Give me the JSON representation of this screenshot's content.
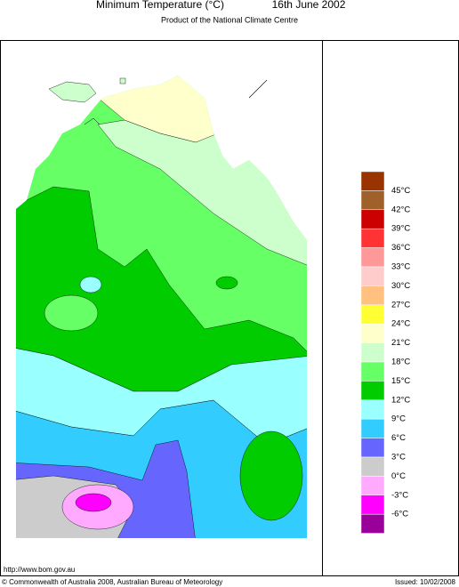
{
  "header": {
    "title": "Minimum Temperature (°C)",
    "date": "16th June 2002",
    "subtitle": "Product of the National Climate Centre"
  },
  "legend": {
    "colors": [
      "#993300",
      "#a0602a",
      "#cc0000",
      "#ff3333",
      "#ff9999",
      "#ffcccc",
      "#ffc080",
      "#ffff33",
      "#ffffcc",
      "#ccffcc",
      "#66ff66",
      "#00cc00",
      "#99ffff",
      "#33ccff",
      "#6666ff",
      "#cccccc",
      "#ffaaff",
      "#ff00ff",
      "#990099"
    ],
    "labels": [
      "45°C",
      "42°C",
      "39°C",
      "36°C",
      "33°C",
      "30°C",
      "27°C",
      "24°C",
      "21°C",
      "18°C",
      "15°C",
      "12°C",
      "9°C",
      "6°C",
      "3°C",
      "0°C",
      "-3°C",
      "-6°C"
    ]
  },
  "footer": {
    "url": "http://www.bom.gov.au",
    "copyright": "© Commonwealth of Australia 2008, Australian Bureau of Meteorology",
    "issued": "Issued: 10/02/2008"
  }
}
